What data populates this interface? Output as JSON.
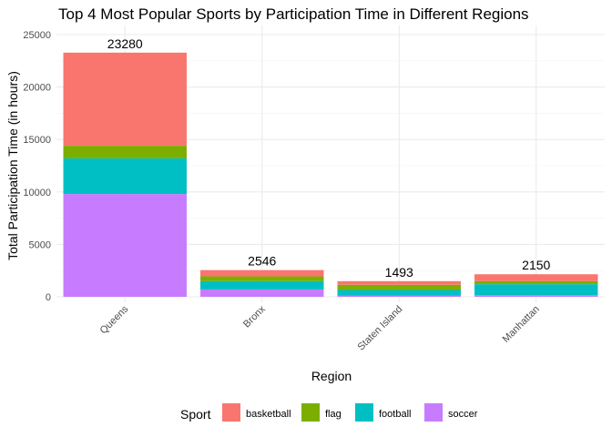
{
  "chart_data": {
    "type": "bar",
    "stacked": true,
    "title": "Top 4 Most Popular Sports by Participation Time in Different Regions",
    "xlabel": "Region",
    "ylabel": "Total Participation Time (in hours)",
    "ylim": [
      0,
      25000
    ],
    "yticks": [
      0,
      5000,
      10000,
      15000,
      20000,
      25000
    ],
    "grid": true,
    "legend_position": "bottom",
    "legend_title": "Sport",
    "categories": [
      "Queens",
      "Bronx",
      "Staten Island",
      "Manhattan"
    ],
    "totals": [
      23280,
      2546,
      1493,
      2150
    ],
    "series": [
      {
        "name": "soccer",
        "color": "#C77CFF",
        "values": [
          9800,
          700,
          100,
          150
        ]
      },
      {
        "name": "football",
        "color": "#00BFC4",
        "values": [
          3400,
          800,
          550,
          1050
        ]
      },
      {
        "name": "flag",
        "color": "#7CAE00",
        "values": [
          1200,
          450,
          500,
          300
        ]
      },
      {
        "name": "basketball",
        "color": "#F8766D",
        "values": [
          8880,
          596,
          343,
          650
        ]
      }
    ]
  }
}
